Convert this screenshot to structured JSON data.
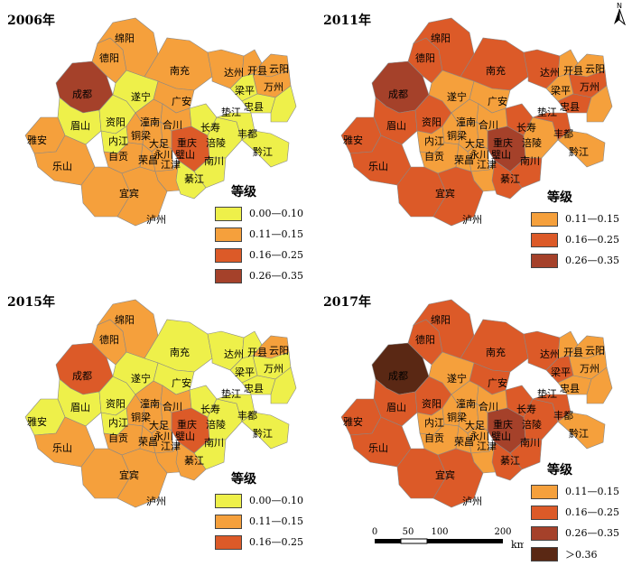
{
  "colors": {
    "c1": "#eef04a",
    "c2": "#f5a03c",
    "c3": "#dc5a28",
    "c4": "#a5412a",
    "c5": "#5a2814",
    "border": "#888888"
  },
  "icons": {
    "north": "north-arrow-icon"
  },
  "north_label": "N",
  "scale": {
    "ticks": [
      "0",
      "50",
      "100",
      "200"
    ],
    "unit": "km"
  },
  "panels": [
    {
      "title": "2006年",
      "legend_title": "等级",
      "legend": [
        {
          "label": "0.00—0.10",
          "color": "#eef04a"
        },
        {
          "label": "0.11—0.15",
          "color": "#f5a03c"
        },
        {
          "label": "0.16—0.25",
          "color": "#dc5a28"
        },
        {
          "label": "0.26—0.35",
          "color": "#a5412a"
        }
      ],
      "classes": {
        "chengdu": 4,
        "deyang": 2,
        "mianyang": 2,
        "nanchong": 2,
        "dazhou": 2,
        "kaixian": 2,
        "wanzhou": 2,
        "meishan": 1,
        "leshan": 2,
        "yaan": 2,
        "ziyang": 1,
        "suining": 1,
        "guangan": 2,
        "zigong": 2,
        "neijiang": 1,
        "yibin": 2,
        "luzhou": 2,
        "chongqing": 3,
        "fuling": 1,
        "liangping": 1,
        "zhongxian": 1,
        "changshou": 1,
        "fengdu": 1,
        "qianjiang": 1,
        "nanchuan": 1,
        "qijiang": 1,
        "xiaoqu": 1
      }
    },
    {
      "title": "2011年",
      "legend_title": "等级",
      "legend": [
        {
          "label": "0.11—0.15",
          "color": "#f5a03c"
        },
        {
          "label": "0.16—0.25",
          "color": "#dc5a28"
        },
        {
          "label": "0.26—0.35",
          "color": "#a5412a"
        }
      ],
      "classes": {
        "chengdu": 4,
        "deyang": 3,
        "mianyang": 3,
        "nanchong": 3,
        "dazhou": 3,
        "kaixian": 2,
        "wanzhou": 3,
        "meishan": 3,
        "leshan": 3,
        "yaan": 3,
        "ziyang": 3,
        "suining": 2,
        "guangan": 2,
        "zigong": 2,
        "neijiang": 2,
        "yibin": 3,
        "luzhou": 3,
        "chongqing": 4,
        "fuling": 2,
        "liangping": 2,
        "zhongxian": 3,
        "changshou": 3,
        "fengdu": 3,
        "qianjiang": 2,
        "nanchuan": 3,
        "qijiang": 3,
        "xiaoqu": 2
      }
    },
    {
      "title": "2015年",
      "legend_title": "等级",
      "legend": [
        {
          "label": "0.00—0.10",
          "color": "#eef04a"
        },
        {
          "label": "0.11—0.15",
          "color": "#f5a03c"
        },
        {
          "label": "0.16—0.25",
          "color": "#dc5a28"
        }
      ],
      "classes": {
        "chengdu": 3,
        "deyang": 2,
        "mianyang": 2,
        "nanchong": 1,
        "dazhou": 1,
        "kaixian": 1,
        "wanzhou": 1,
        "meishan": 1,
        "leshan": 2,
        "yaan": 1,
        "ziyang": 1,
        "suining": 1,
        "guangan": 1,
        "zigong": 2,
        "neijiang": 1,
        "yibin": 2,
        "luzhou": 2,
        "chongqing": 3,
        "fuling": 1,
        "liangping": 1,
        "zhongxian": 1,
        "changshou": 1,
        "fengdu": 1,
        "qianjiang": 1,
        "nanchuan": 1,
        "qijiang": 2,
        "xiaoqu": 1
      }
    },
    {
      "title": "2017年",
      "legend_title": "等级",
      "legend": [
        {
          "label": "0.11—0.15",
          "color": "#f5a03c"
        },
        {
          "label": "0.16—0.25",
          "color": "#dc5a28"
        },
        {
          "label": "0.26—0.35",
          "color": "#a5412a"
        },
        {
          "label": "＞0.36",
          "color": "#5a2814"
        }
      ],
      "classes": {
        "chengdu": 5,
        "deyang": 3,
        "mianyang": 3,
        "nanchong": 3,
        "dazhou": 3,
        "kaixian": 2,
        "wanzhou": 2,
        "meishan": 3,
        "leshan": 3,
        "yaan": 3,
        "ziyang": 3,
        "suining": 2,
        "guangan": 3,
        "zigong": 2,
        "neijiang": 2,
        "yibin": 3,
        "luzhou": 3,
        "chongqing": 4,
        "fuling": 3,
        "liangping": 3,
        "zhongxian": 2,
        "changshou": 3,
        "fengdu": 3,
        "qianjiang": 2,
        "nanchuan": 3,
        "qijiang": 3,
        "xiaoqu": 2
      }
    }
  ],
  "regions": [
    {
      "id": "chengdu",
      "label": "成都"
    },
    {
      "id": "deyang",
      "label": "德阳"
    },
    {
      "id": "mianyang",
      "label": "绵阳"
    },
    {
      "id": "nanchong",
      "label": "南充"
    },
    {
      "id": "dazhou",
      "label": "达州"
    },
    {
      "id": "kaixian",
      "label": "开县"
    },
    {
      "id": "yunyang",
      "label": "云阳"
    },
    {
      "id": "wanzhou",
      "label": "万州"
    },
    {
      "id": "liangping",
      "label": "梁平"
    },
    {
      "id": "zhongxian",
      "label": "忠县"
    },
    {
      "id": "dianjiang",
      "label": "垫江"
    },
    {
      "id": "suining",
      "label": "遂宁"
    },
    {
      "id": "guangan",
      "label": "广安"
    },
    {
      "id": "meishan",
      "label": "眉山"
    },
    {
      "id": "ziyang",
      "label": "资阳"
    },
    {
      "id": "tongnan",
      "label": "潼南"
    },
    {
      "id": "hechuan",
      "label": "合川"
    },
    {
      "id": "changshou",
      "label": "长寿"
    },
    {
      "id": "fengdu",
      "label": "丰都"
    },
    {
      "id": "yaan",
      "label": "雅安"
    },
    {
      "id": "tongliang",
      "label": "铜梁"
    },
    {
      "id": "neijiang",
      "label": "内江"
    },
    {
      "id": "dazu",
      "label": "大足"
    },
    {
      "id": "chongqing",
      "label": "重庆"
    },
    {
      "id": "fuling",
      "label": "涪陵"
    },
    {
      "id": "qianjiang",
      "label": "黔江"
    },
    {
      "id": "leshan",
      "label": "乐山"
    },
    {
      "id": "zigong",
      "label": "自贡"
    },
    {
      "id": "rongchang",
      "label": "荣昌"
    },
    {
      "id": "yongchuan",
      "label": "永川"
    },
    {
      "id": "bishan",
      "label": "璧山"
    },
    {
      "id": "jiangjin",
      "label": "江津"
    },
    {
      "id": "nanchuan",
      "label": "南川"
    },
    {
      "id": "qijiang",
      "label": "綦江"
    },
    {
      "id": "yibin",
      "label": "宜宾"
    },
    {
      "id": "luzhou",
      "label": "泸州"
    }
  ]
}
